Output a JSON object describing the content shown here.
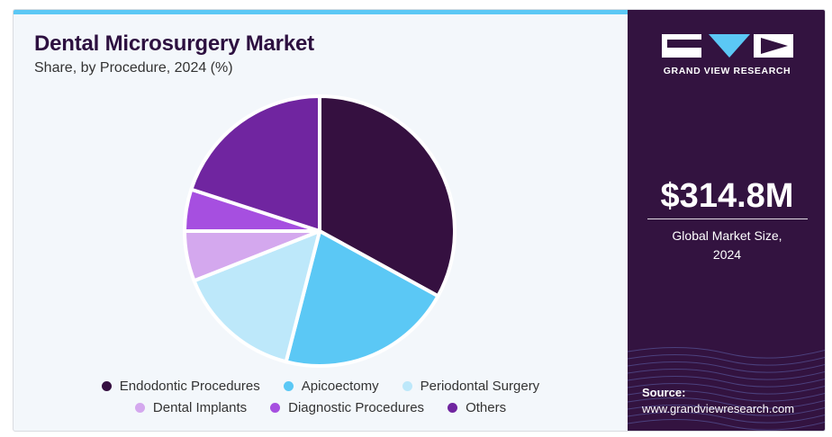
{
  "header": {
    "title": "Dental Microsurgery Market",
    "subtitle": "Share, by Procedure, 2024 (%)"
  },
  "chart_data": {
    "type": "pie",
    "title": "Dental Microsurgery Market",
    "subtitle": "Share, by Procedure, 2024 (%)",
    "categories": [
      "Endodontic Procedures",
      "Apicoectomy",
      "Periodontal Surgery",
      "Dental Implants",
      "Diagnostic Procedures",
      "Others"
    ],
    "values": [
      33,
      21,
      15,
      6,
      5,
      20
    ],
    "colors": [
      "#351040",
      "#5bc8f5",
      "#bde8fa",
      "#d4a8ee",
      "#a64fe0",
      "#7025a0"
    ],
    "legend_position": "bottom",
    "start_angle_deg": 0,
    "direction": "clockwise"
  },
  "sidebar": {
    "logo_text": "GRAND VIEW RESEARCH",
    "market_size": "$314.8M",
    "market_size_label_line1": "Global Market Size,",
    "market_size_label_line2": "2024",
    "source_label": "Source:",
    "source_url": "www.grandviewresearch.com"
  },
  "colors": {
    "sidebar_bg": "#331340",
    "accent": "#5bc8f5",
    "title": "#2d1040"
  }
}
